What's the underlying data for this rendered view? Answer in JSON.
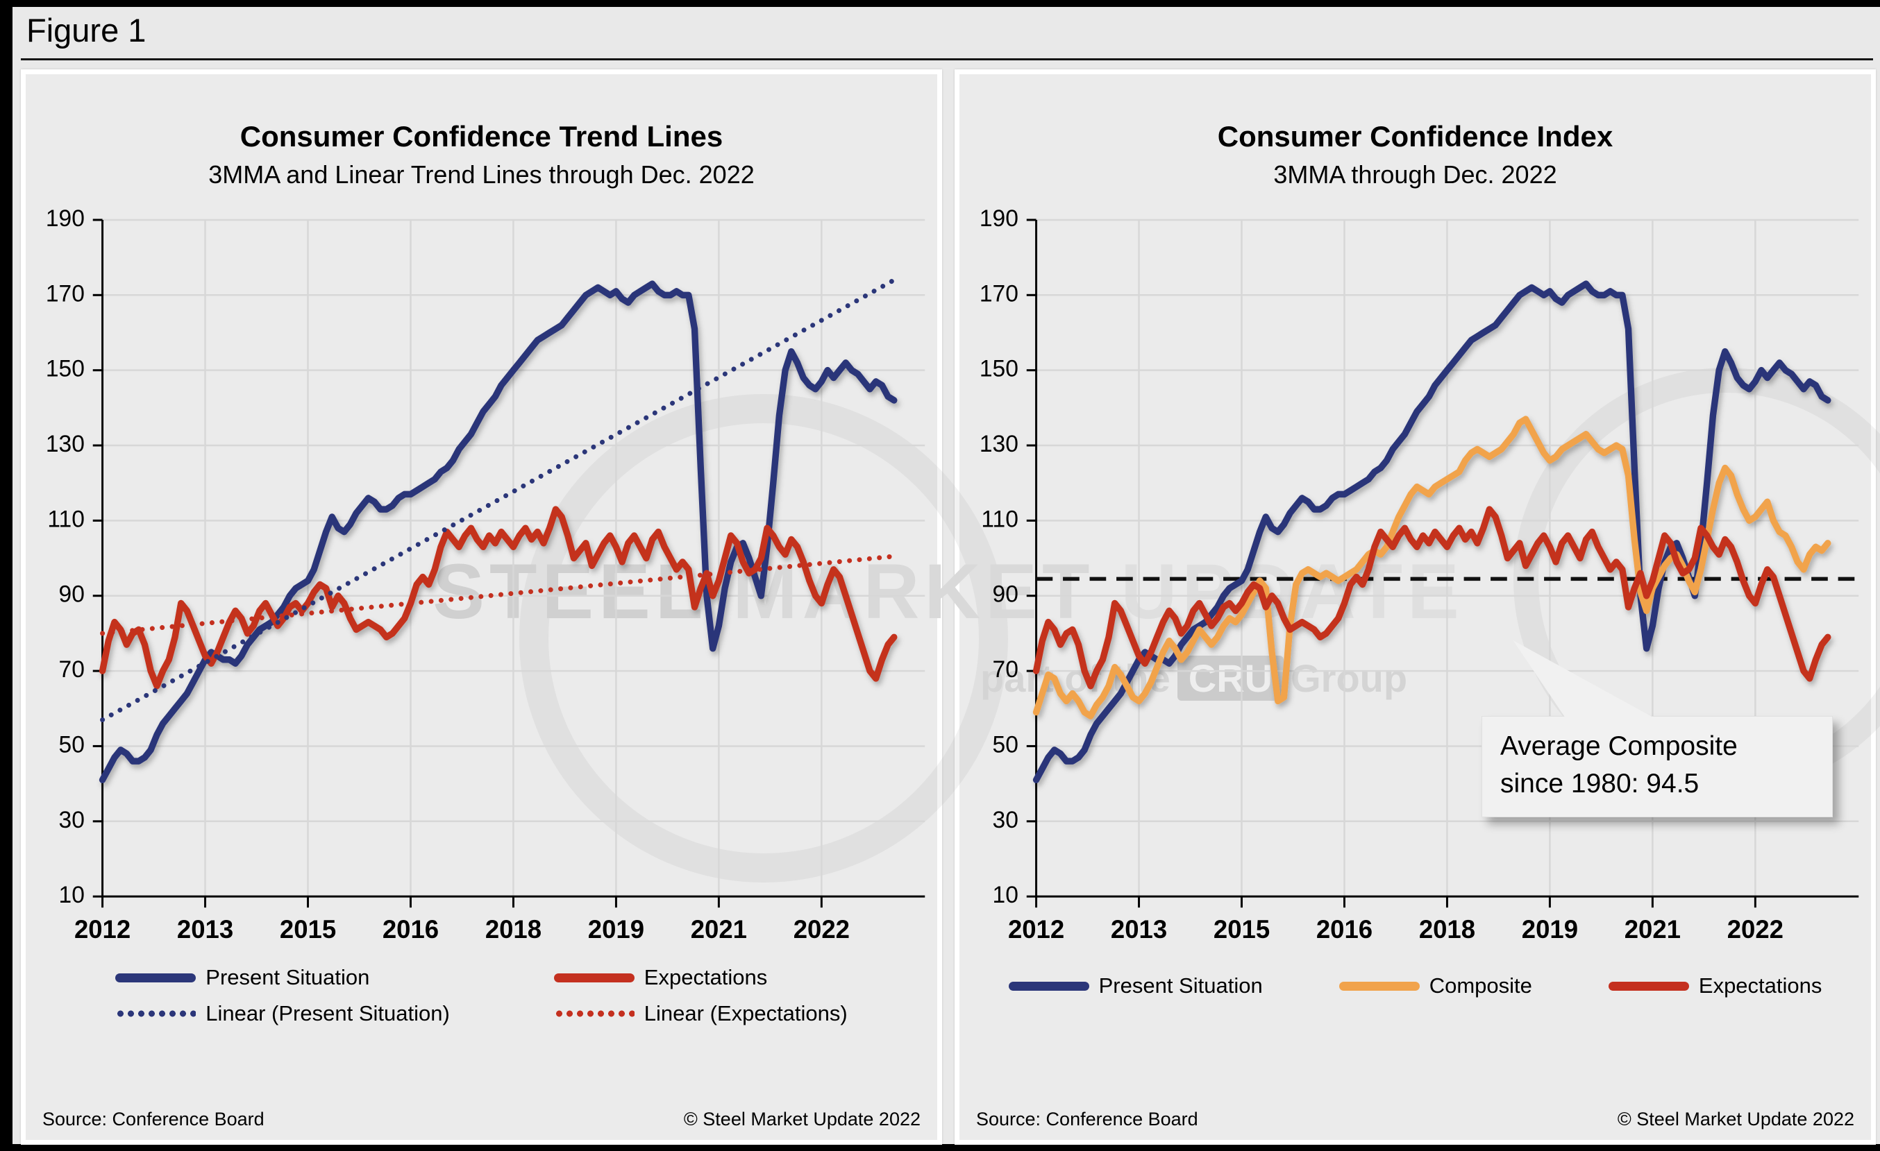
{
  "header": {
    "figure_label": "Figure 1"
  },
  "watermark": {
    "word1": "STEEL",
    "word2": "MARKET",
    "word3": "UPDATE",
    "line2_prefix": "part of the",
    "line2_box": "CRU",
    "line2_suffix": "Group"
  },
  "charts": [
    {
      "title": "Consumer Confidence Trend Lines",
      "subtitle": "3MMA and Linear Trend Lines through Dec. 2022",
      "source": "Source: Conference Board",
      "copyright": "© Steel Market Update 2022",
      "legend": [
        {
          "label": "Present Situation",
          "color": "#2b3679",
          "style": "solid"
        },
        {
          "label": "Expectations",
          "color": "#c4301f",
          "style": "solid"
        },
        {
          "label": "Linear (Present Situation)",
          "color": "#2b3679",
          "style": "dotted"
        },
        {
          "label": "Linear (Expectations)",
          "color": "#c4301f",
          "style": "dotted"
        }
      ]
    },
    {
      "title": "Consumer Confidence Index",
      "subtitle": "3MMA through Dec. 2022",
      "source": "Source: Conference Board",
      "copyright": "© Steel Market Update 2022",
      "annotation": {
        "line1": "Average Composite",
        "line2": "since 1980: 94.5"
      },
      "legend": [
        {
          "label": "Present Situation",
          "color": "#2b3679",
          "style": "solid"
        },
        {
          "label": "Composite",
          "color": "#f1a34c",
          "style": "solid"
        },
        {
          "label": "Expectations",
          "color": "#c4301f",
          "style": "solid"
        }
      ]
    }
  ],
  "chart_data": [
    {
      "type": "line",
      "title": "Consumer Confidence Trend Lines",
      "subtitle": "3MMA and Linear Trend Lines through Dec. 2022",
      "xlabel": "",
      "ylabel": "",
      "ylim": [
        10,
        190
      ],
      "x_tick_labels": [
        "2012",
        "2013",
        "2015",
        "2016",
        "2018",
        "2019",
        "2021",
        "2022"
      ],
      "x_tick_indices": [
        0,
        17,
        34,
        51,
        68,
        85,
        102,
        119
      ],
      "y_axis": {
        "min": 10,
        "max": 190,
        "ticks": [
          10,
          30,
          50,
          70,
          90,
          110,
          130,
          150,
          170,
          190
        ]
      },
      "grid": true,
      "legend_position": "bottom",
      "series": [
        {
          "name": "Present Situation",
          "color": "#2b3679",
          "style": "solid",
          "values": [
            41,
            44,
            47,
            49,
            48,
            46,
            46,
            47,
            49,
            53,
            56,
            58,
            60,
            62,
            64,
            67,
            70,
            73,
            75,
            74,
            73,
            73,
            72,
            74,
            77,
            79,
            81,
            82,
            83,
            85,
            87,
            90,
            92,
            93,
            94,
            97,
            102,
            107,
            111,
            108,
            107,
            109,
            112,
            114,
            116,
            115,
            113,
            113,
            114,
            116,
            117,
            117,
            118,
            119,
            120,
            121,
            123,
            124,
            126,
            129,
            131,
            133,
            136,
            139,
            141,
            143,
            146,
            148,
            150,
            152,
            154,
            156,
            158,
            159,
            160,
            161,
            162,
            164,
            166,
            168,
            170,
            171,
            172,
            171,
            170,
            171,
            169,
            168,
            170,
            171,
            172,
            173,
            171,
            170,
            170,
            171,
            170,
            170,
            161,
            124,
            90,
            76,
            82,
            92,
            99,
            103,
            104,
            100,
            95,
            90,
            103,
            120,
            138,
            150,
            155,
            152,
            148,
            146,
            145,
            147,
            150,
            148,
            150,
            152,
            150,
            149,
            147,
            145,
            147,
            146,
            143,
            142
          ]
        },
        {
          "name": "Expectations",
          "color": "#c4301f",
          "style": "solid",
          "values": [
            70,
            78,
            83,
            81,
            77,
            80,
            81,
            77,
            70,
            66,
            70,
            73,
            79,
            88,
            86,
            82,
            78,
            74,
            72,
            75,
            79,
            83,
            86,
            84,
            80,
            82,
            86,
            88,
            85,
            82,
            84,
            87,
            88,
            86,
            88,
            91,
            93,
            92,
            87,
            90,
            88,
            84,
            81,
            82,
            83,
            82,
            81,
            79,
            80,
            82,
            84,
            88,
            93,
            95,
            93,
            97,
            103,
            107,
            105,
            103,
            106,
            108,
            105,
            103,
            106,
            104,
            107,
            105,
            103,
            106,
            108,
            105,
            107,
            104,
            108,
            113,
            111,
            106,
            100,
            102,
            104,
            98,
            101,
            104,
            106,
            103,
            99,
            104,
            106,
            103,
            100,
            105,
            107,
            103,
            100,
            97,
            99,
            97,
            87,
            92,
            96,
            90,
            94,
            100,
            106,
            104,
            99,
            96,
            97,
            100,
            108,
            106,
            103,
            101,
            105,
            103,
            99,
            94,
            90,
            88,
            93,
            97,
            95,
            90,
            85,
            80,
            75,
            70,
            68,
            73,
            77,
            79
          ]
        }
      ],
      "trend_lines": [
        {
          "name": "Linear (Present Situation)",
          "color": "#2b3679",
          "style": "dotted",
          "start": 57,
          "end": 174
        },
        {
          "name": "Linear (Expectations)",
          "color": "#c4301f",
          "style": "dotted",
          "start": 80,
          "end": 100.5
        }
      ]
    },
    {
      "type": "line",
      "title": "Consumer Confidence Index",
      "subtitle": "3MMA through Dec. 2022",
      "xlabel": "",
      "ylabel": "",
      "ylim": [
        10,
        190
      ],
      "x_tick_labels": [
        "2012",
        "2013",
        "2015",
        "2016",
        "2018",
        "2019",
        "2021",
        "2022"
      ],
      "x_tick_indices": [
        0,
        17,
        34,
        51,
        68,
        85,
        102,
        119
      ],
      "y_axis": {
        "min": 10,
        "max": 190,
        "ticks": [
          10,
          30,
          50,
          70,
          90,
          110,
          130,
          150,
          170,
          190
        ]
      },
      "grid": true,
      "legend_position": "bottom",
      "series": [
        {
          "name": "Present Situation",
          "color": "#2b3679",
          "style": "solid",
          "values": [
            41,
            44,
            47,
            49,
            48,
            46,
            46,
            47,
            49,
            53,
            56,
            58,
            60,
            62,
            64,
            67,
            70,
            73,
            75,
            74,
            73,
            73,
            72,
            74,
            77,
            79,
            81,
            82,
            83,
            85,
            87,
            90,
            92,
            93,
            94,
            97,
            102,
            107,
            111,
            108,
            107,
            109,
            112,
            114,
            116,
            115,
            113,
            113,
            114,
            116,
            117,
            117,
            118,
            119,
            120,
            121,
            123,
            124,
            126,
            129,
            131,
            133,
            136,
            139,
            141,
            143,
            146,
            148,
            150,
            152,
            154,
            156,
            158,
            159,
            160,
            161,
            162,
            164,
            166,
            168,
            170,
            171,
            172,
            171,
            170,
            171,
            169,
            168,
            170,
            171,
            172,
            173,
            171,
            170,
            170,
            171,
            170,
            170,
            161,
            124,
            90,
            76,
            82,
            92,
            99,
            103,
            104,
            100,
            95,
            90,
            103,
            120,
            138,
            150,
            155,
            152,
            148,
            146,
            145,
            147,
            150,
            148,
            150,
            152,
            150,
            149,
            147,
            145,
            147,
            146,
            143,
            142
          ]
        },
        {
          "name": "Composite",
          "color": "#f1a34c",
          "style": "solid",
          "values": [
            59,
            64,
            69,
            68,
            64,
            62,
            64,
            62,
            59,
            58,
            61,
            63,
            66,
            71,
            69,
            66,
            63,
            62,
            64,
            67,
            71,
            75,
            78,
            76,
            73,
            75,
            78,
            81,
            79,
            77,
            79,
            82,
            84,
            83,
            85,
            88,
            91,
            94,
            92,
            75,
            62,
            63,
            82,
            93,
            96,
            97,
            96,
            95,
            96,
            95,
            94,
            95,
            96,
            97,
            99,
            101,
            102,
            101,
            103,
            107,
            111,
            114,
            117,
            119,
            118,
            117,
            119,
            120,
            121,
            122,
            123,
            126,
            128,
            129,
            128,
            127,
            128,
            129,
            131,
            133,
            136,
            137,
            134,
            131,
            128,
            126,
            127,
            129,
            130,
            131,
            132,
            133,
            131,
            129,
            128,
            129,
            130,
            129,
            122,
            105,
            91,
            86,
            92,
            95,
            98,
            100,
            101,
            98,
            94,
            91,
            97,
            105,
            113,
            120,
            124,
            122,
            117,
            113,
            110,
            111,
            113,
            115,
            110,
            107,
            106,
            103,
            99,
            97,
            101,
            103,
            102,
            104
          ]
        },
        {
          "name": "Expectations",
          "color": "#c4301f",
          "style": "solid",
          "values": [
            70,
            78,
            83,
            81,
            77,
            80,
            81,
            77,
            70,
            66,
            70,
            73,
            79,
            88,
            86,
            82,
            78,
            74,
            72,
            75,
            79,
            83,
            86,
            84,
            80,
            82,
            86,
            88,
            85,
            82,
            84,
            87,
            88,
            86,
            88,
            91,
            93,
            92,
            87,
            90,
            88,
            84,
            81,
            82,
            83,
            82,
            81,
            79,
            80,
            82,
            84,
            88,
            93,
            95,
            93,
            97,
            103,
            107,
            105,
            103,
            106,
            108,
            105,
            103,
            106,
            104,
            107,
            105,
            103,
            106,
            108,
            105,
            107,
            104,
            108,
            113,
            111,
            106,
            100,
            102,
            104,
            98,
            101,
            104,
            106,
            103,
            99,
            104,
            106,
            103,
            100,
            105,
            107,
            103,
            100,
            97,
            99,
            97,
            87,
            92,
            96,
            90,
            94,
            100,
            106,
            104,
            99,
            96,
            97,
            100,
            108,
            106,
            103,
            101,
            105,
            103,
            99,
            94,
            90,
            88,
            93,
            97,
            95,
            90,
            85,
            80,
            75,
            70,
            68,
            73,
            77,
            79
          ]
        }
      ],
      "reference_line": {
        "value": 94.5,
        "color": "#111111",
        "style": "dashed",
        "label": "Average Composite since 1980: 94.5"
      }
    }
  ]
}
